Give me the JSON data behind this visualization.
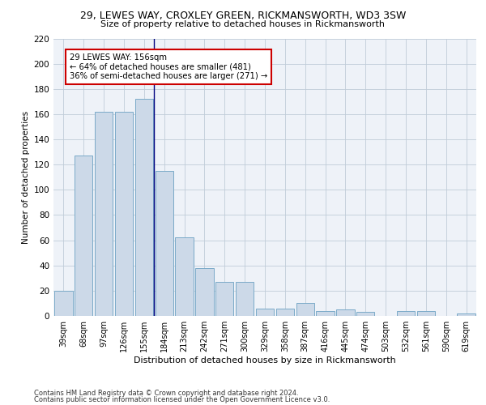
{
  "title1": "29, LEWES WAY, CROXLEY GREEN, RICKMANSWORTH, WD3 3SW",
  "title2": "Size of property relative to detached houses in Rickmansworth",
  "xlabel": "Distribution of detached houses by size in Rickmansworth",
  "ylabel": "Number of detached properties",
  "categories": [
    "39sqm",
    "68sqm",
    "97sqm",
    "126sqm",
    "155sqm",
    "184sqm",
    "213sqm",
    "242sqm",
    "271sqm",
    "300sqm",
    "329sqm",
    "358sqm",
    "387sqm",
    "416sqm",
    "445sqm",
    "474sqm",
    "503sqm",
    "532sqm",
    "561sqm",
    "590sqm",
    "619sqm"
  ],
  "values": [
    20,
    127,
    162,
    162,
    172,
    115,
    62,
    38,
    27,
    27,
    6,
    6,
    10,
    4,
    5,
    3,
    0,
    4,
    4,
    0,
    2
  ],
  "bar_color": "#ccd9e8",
  "bar_edge_color": "#7aaac8",
  "property_line_x": 4.5,
  "annotation_text": "29 LEWES WAY: 156sqm\n← 64% of detached houses are smaller (481)\n36% of semi-detached houses are larger (271) →",
  "annotation_box_color": "#ffffff",
  "annotation_box_edge": "#cc0000",
  "vline_color": "#000080",
  "grid_color": "#c0ccd8",
  "bg_color": "#eef2f8",
  "ylim": [
    0,
    220
  ],
  "yticks": [
    0,
    20,
    40,
    60,
    80,
    100,
    120,
    140,
    160,
    180,
    200,
    220
  ],
  "footer1": "Contains HM Land Registry data © Crown copyright and database right 2024.",
  "footer2": "Contains public sector information licensed under the Open Government Licence v3.0."
}
